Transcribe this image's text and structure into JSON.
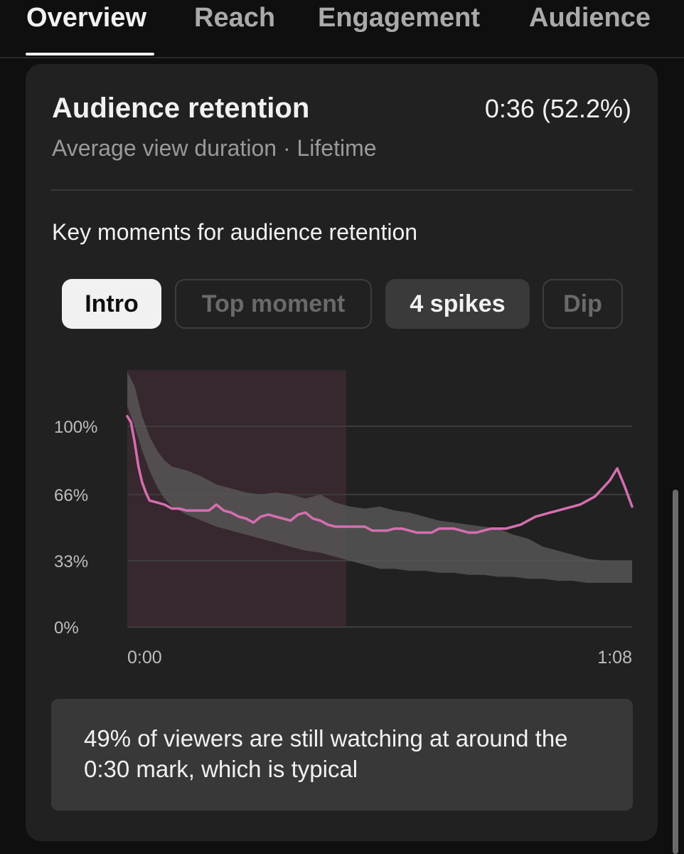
{
  "tabs": [
    {
      "label": "Overview",
      "active": true
    },
    {
      "label": "Reach",
      "active": false
    },
    {
      "label": "Engagement",
      "active": false
    },
    {
      "label": "Audience",
      "active": false
    }
  ],
  "card": {
    "title": "Audience retention",
    "metric": "0:36 (52.2%)",
    "subtitle": "Average view duration · Lifetime",
    "section_label": "Key moments for audience retention"
  },
  "chips": [
    {
      "label": "Intro",
      "selected": true
    },
    {
      "label": "Top moment",
      "enabled": false
    },
    {
      "label": "4 spikes",
      "enabled": true
    },
    {
      "label": "Dip",
      "enabled": false
    }
  ],
  "insight": {
    "text": "49% of viewers are still watching at around the 0:30 mark, which is typical"
  },
  "colors": {
    "background": "#0f0f0f",
    "card": "#212121",
    "retention_line": "#d56fb0",
    "typical_band": "#5a5a5a",
    "intro_highlight": "#3a2830"
  },
  "chart_data": {
    "type": "line",
    "x_unit": "seconds",
    "x_tick_labels": [
      "0:00",
      "1:08"
    ],
    "xlim": [
      0,
      68
    ],
    "y_tick_labels": [
      "100%",
      "66%",
      "33%",
      "0%"
    ],
    "y_ticks": [
      100,
      66,
      33,
      0
    ],
    "ylim": [
      0,
      128
    ],
    "grid": true,
    "highlight_range": [
      0,
      29.5
    ],
    "series": [
      {
        "role": "retention",
        "x": [
          0,
          0.5,
          1,
          1.5,
          2,
          2.5,
          3,
          4,
          5,
          6,
          7,
          8,
          9,
          10,
          11,
          12,
          13,
          14,
          15,
          16,
          17,
          18,
          19,
          20,
          21,
          22,
          23,
          24,
          25,
          26,
          27,
          28,
          29,
          30,
          31,
          32,
          33,
          34,
          35,
          36,
          37,
          38,
          39,
          40,
          41,
          42,
          43,
          44,
          45,
          46,
          47,
          48,
          49,
          50,
          51,
          52,
          53,
          54,
          55,
          56,
          57,
          58,
          59,
          60,
          61,
          62,
          63,
          64,
          65,
          66,
          67,
          68
        ],
        "y": [
          105,
          102,
          92,
          80,
          72,
          67,
          63,
          62,
          61,
          59,
          59,
          58,
          58,
          58,
          58,
          61,
          58,
          57,
          55,
          54,
          52,
          55,
          56,
          55,
          54,
          53,
          56,
          57,
          54,
          53,
          51,
          50,
          50,
          50,
          50,
          50,
          48,
          48,
          48,
          49,
          49,
          48,
          47,
          47,
          47,
          49,
          49,
          49,
          48,
          47,
          47,
          48,
          49,
          49,
          49,
          50,
          51,
          53,
          55,
          56,
          57,
          58,
          59,
          60,
          61,
          63,
          65,
          69,
          73,
          79,
          70,
          60
        ]
      },
      {
        "role": "typical_range",
        "x": [
          0,
          1,
          2,
          3,
          4,
          5,
          6,
          8,
          10,
          12,
          14,
          16,
          18,
          20,
          22,
          24,
          26,
          28,
          30,
          32,
          34,
          36,
          38,
          40,
          42,
          44,
          46,
          48,
          50,
          52,
          54,
          56,
          58,
          60,
          62,
          64,
          66,
          68
        ],
        "high": [
          127,
          120,
          105,
          95,
          88,
          83,
          80,
          78,
          75,
          71,
          69,
          67,
          66,
          67,
          66,
          64,
          66,
          62,
          60,
          59,
          60,
          58,
          57,
          55,
          53,
          52,
          51,
          50,
          49,
          46,
          44,
          40,
          38,
          36,
          34,
          33,
          33,
          33
        ],
        "low": [
          110,
          100,
          88,
          78,
          70,
          64,
          60,
          56,
          53,
          50,
          48,
          46,
          44,
          42,
          40,
          38,
          37,
          35,
          33,
          31,
          29,
          29,
          28,
          28,
          27,
          27,
          26,
          26,
          25,
          25,
          24,
          24,
          23,
          23,
          22,
          22,
          22,
          22
        ]
      }
    ]
  }
}
